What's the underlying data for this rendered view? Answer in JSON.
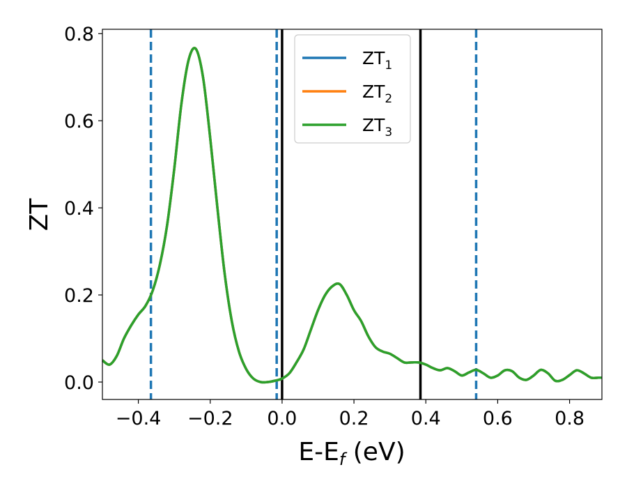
{
  "chart_data": {
    "type": "line",
    "title": "",
    "xlabel": {
      "main": "E-E",
      "sub": "f",
      "tail": " (eV)"
    },
    "ylabel": "ZT",
    "xlim": [
      -0.5,
      0.89
    ],
    "ylim": [
      -0.04,
      0.81
    ],
    "xticks": [
      -0.4,
      -0.2,
      0.0,
      0.2,
      0.4,
      0.6,
      0.8
    ],
    "xtick_labels": [
      "−0.4",
      "−0.2",
      "0.0",
      "0.2",
      "0.4",
      "0.6",
      "0.8"
    ],
    "yticks": [
      0.0,
      0.2,
      0.4,
      0.6,
      0.8
    ],
    "ytick_labels": [
      "0.0",
      "0.2",
      "0.4",
      "0.6",
      "0.8"
    ],
    "grid": false,
    "legend_position": "top-center",
    "series": [
      {
        "name": "ZT",
        "name_sub": "1",
        "color": "#1f77b4"
      },
      {
        "name": "ZT",
        "name_sub": "2",
        "color": "#ff7f0e"
      },
      {
        "name": "ZT",
        "name_sub": "3",
        "color": "#2ca02c"
      }
    ],
    "x": [
      -0.5,
      -0.48,
      -0.46,
      -0.44,
      -0.42,
      -0.4,
      -0.38,
      -0.36,
      -0.34,
      -0.32,
      -0.3,
      -0.28,
      -0.26,
      -0.24,
      -0.22,
      -0.2,
      -0.18,
      -0.16,
      -0.14,
      -0.12,
      -0.1,
      -0.08,
      -0.06,
      -0.04,
      -0.02,
      0.0,
      0.02,
      0.04,
      0.06,
      0.08,
      0.1,
      0.12,
      0.14,
      0.16,
      0.18,
      0.2,
      0.22,
      0.24,
      0.26,
      0.28,
      0.3,
      0.32,
      0.34,
      0.36,
      0.38,
      0.4,
      0.42,
      0.44,
      0.46,
      0.48,
      0.5,
      0.52,
      0.54,
      0.56,
      0.58,
      0.6,
      0.62,
      0.64,
      0.66,
      0.68,
      0.7,
      0.72,
      0.74,
      0.76,
      0.78,
      0.8,
      0.82,
      0.84,
      0.86,
      0.88,
      0.89
    ],
    "y": [
      0.05,
      0.04,
      0.06,
      0.1,
      0.13,
      0.155,
      0.175,
      0.21,
      0.27,
      0.36,
      0.49,
      0.64,
      0.74,
      0.765,
      0.7,
      0.56,
      0.4,
      0.25,
      0.14,
      0.07,
      0.03,
      0.008,
      0.0,
      0.0,
      0.003,
      0.008,
      0.02,
      0.045,
      0.075,
      0.12,
      0.165,
      0.2,
      0.22,
      0.225,
      0.2,
      0.165,
      0.14,
      0.105,
      0.08,
      0.07,
      0.065,
      0.055,
      0.045,
      0.045,
      0.045,
      0.04,
      0.032,
      0.027,
      0.032,
      0.025,
      0.015,
      0.022,
      0.028,
      0.02,
      0.01,
      0.015,
      0.027,
      0.025,
      0.01,
      0.005,
      0.015,
      0.028,
      0.02,
      0.003,
      0.005,
      0.016,
      0.027,
      0.02,
      0.01,
      0.01,
      0.01
    ],
    "vlines": [
      {
        "x": -0.365,
        "style": "dashed",
        "color": "#1f77b4"
      },
      {
        "x": -0.015,
        "style": "dashed",
        "color": "#1f77b4"
      },
      {
        "x": 0.0,
        "style": "solid",
        "color": "#000000"
      },
      {
        "x": 0.385,
        "style": "solid",
        "color": "#000000"
      },
      {
        "x": 0.54,
        "style": "dashed",
        "color": "#1f77b4"
      }
    ]
  }
}
